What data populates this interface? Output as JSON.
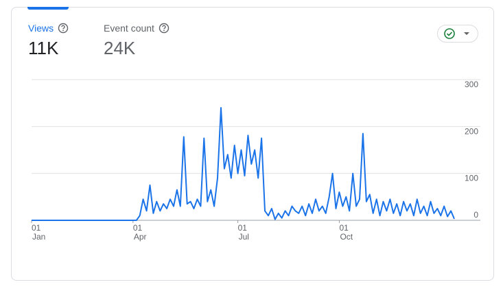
{
  "metrics": [
    {
      "label": "Views",
      "value": "11K"
    },
    {
      "label": "Event count",
      "value": "24K"
    }
  ],
  "chart_data": {
    "type": "line",
    "xlim": [
      0,
      125
    ],
    "xticks": [
      {
        "value": 0,
        "day": "01",
        "month": "Jan"
      },
      {
        "value": 30,
        "day": "01",
        "month": "Apr"
      },
      {
        "value": 61,
        "day": "01",
        "month": "Jul"
      },
      {
        "value": 91,
        "day": "01",
        "month": "Oct"
      }
    ],
    "ylim": [
      0,
      300
    ],
    "yticks": [
      0,
      100,
      200,
      300
    ],
    "grid": true,
    "color": "#1a73e8",
    "values": [
      0,
      0,
      0,
      0,
      0,
      0,
      0,
      0,
      0,
      0,
      0,
      0,
      0,
      0,
      0,
      0,
      0,
      0,
      0,
      0,
      0,
      0,
      0,
      0,
      0,
      0,
      0,
      0,
      0,
      0,
      0,
      0,
      10,
      45,
      20,
      75,
      15,
      40,
      20,
      35,
      25,
      45,
      30,
      65,
      30,
      178,
      35,
      40,
      25,
      45,
      30,
      175,
      40,
      65,
      30,
      90,
      240,
      110,
      140,
      90,
      160,
      100,
      150,
      95,
      181,
      120,
      150,
      90,
      175,
      20,
      10,
      25,
      2,
      15,
      5,
      20,
      10,
      30,
      20,
      15,
      30,
      10,
      35,
      15,
      45,
      20,
      30,
      15,
      50,
      100,
      25,
      60,
      30,
      50,
      20,
      100,
      30,
      45,
      185,
      40,
      55,
      15,
      45,
      10,
      40,
      20,
      45,
      15,
      35,
      10,
      40,
      20,
      35,
      10,
      45,
      15,
      30,
      10,
      40,
      15,
      25,
      10,
      30,
      8,
      20,
      3
    ]
  }
}
